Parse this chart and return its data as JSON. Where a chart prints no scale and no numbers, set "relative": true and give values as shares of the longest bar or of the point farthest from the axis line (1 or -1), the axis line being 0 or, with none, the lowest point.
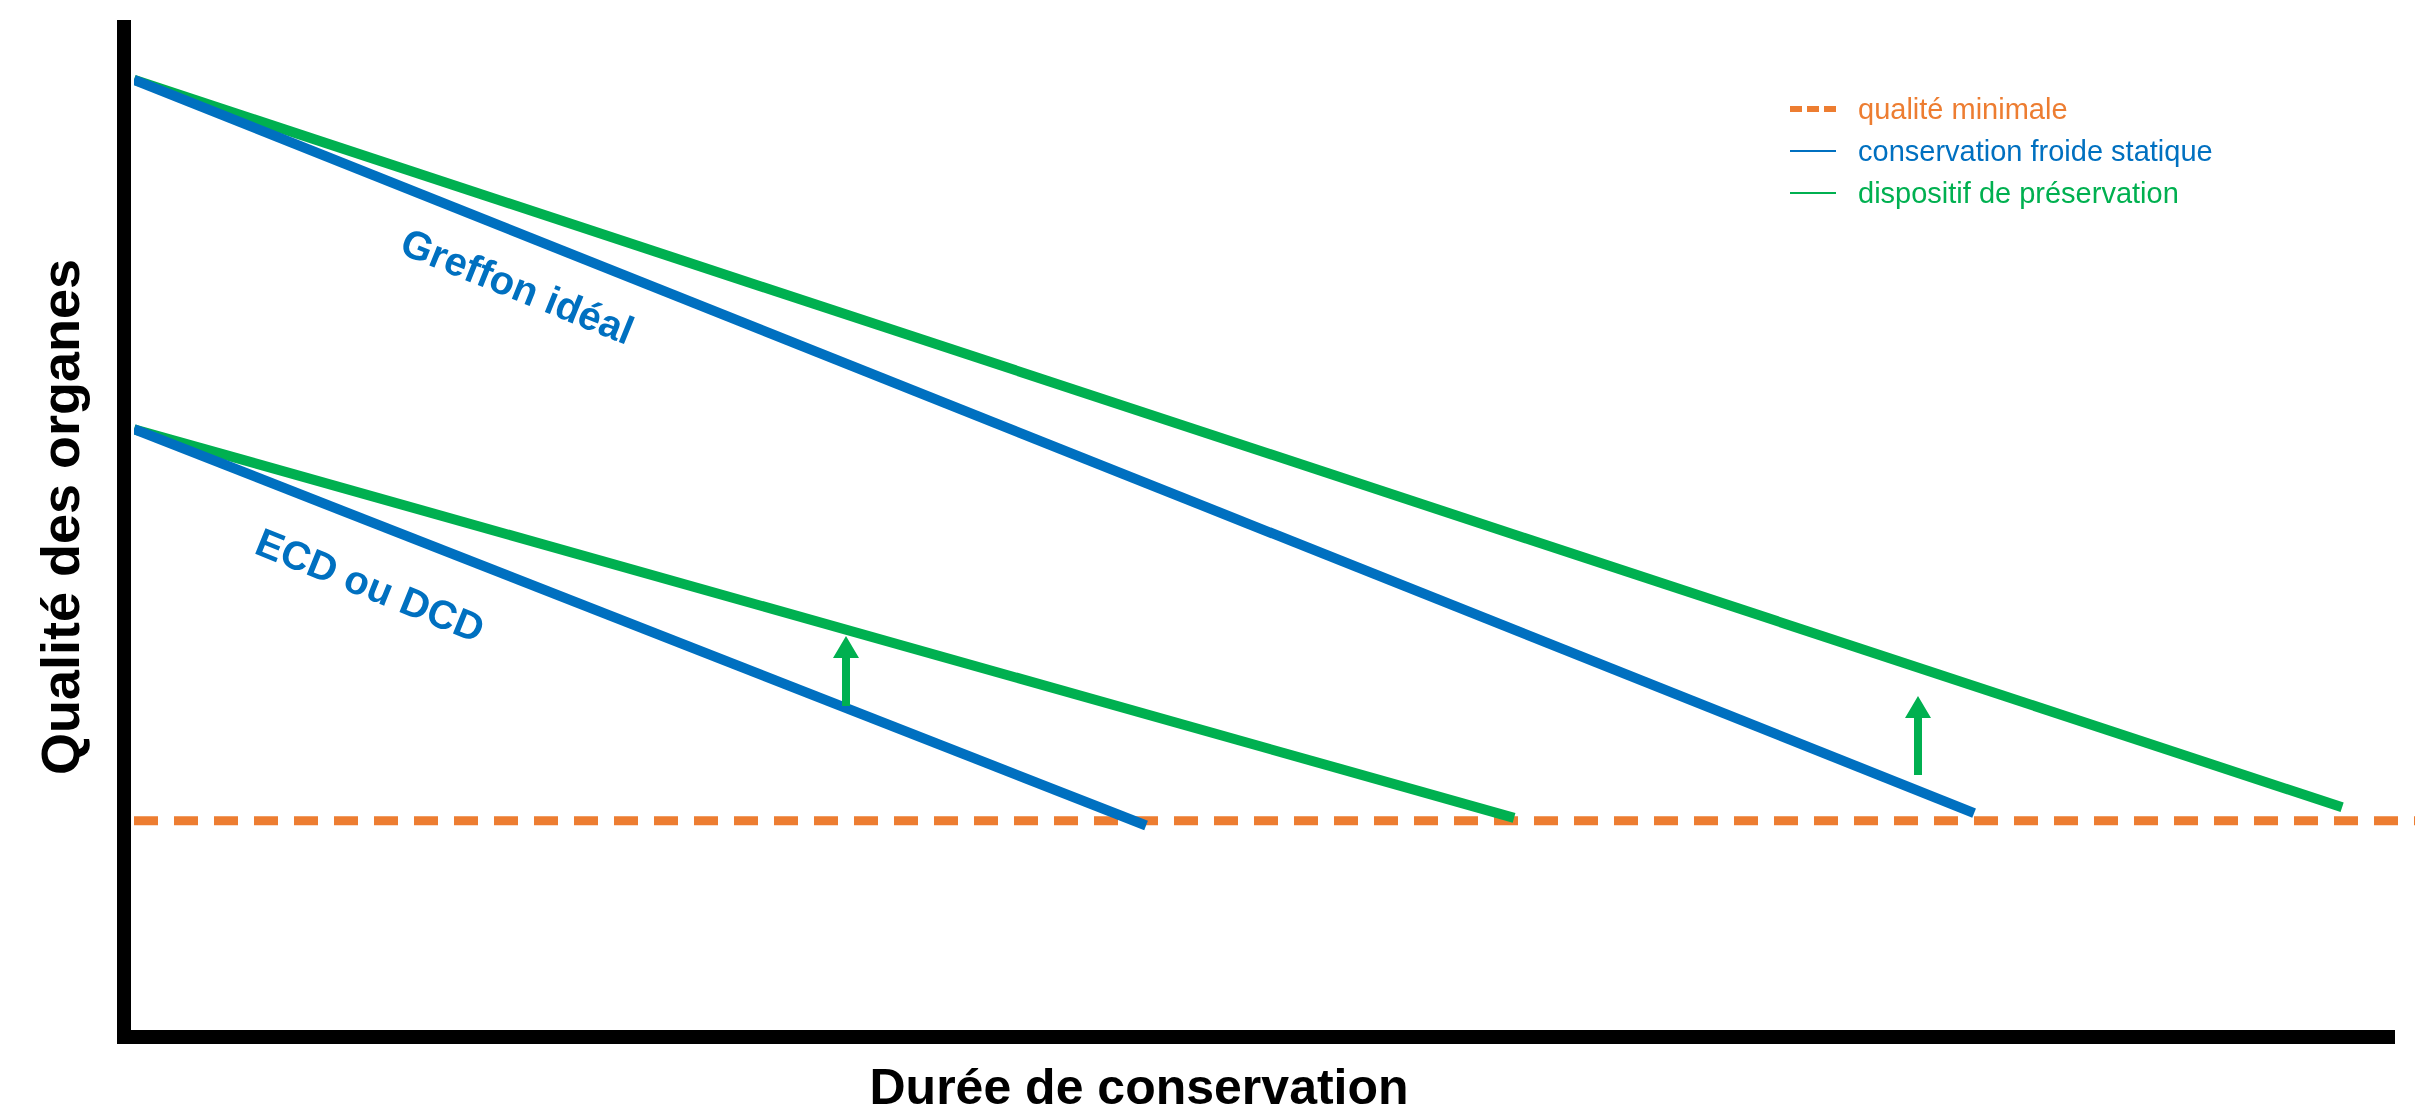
{
  "chart_data": {
    "type": "line",
    "relative": true,
    "xlabel": "Durée de conservation",
    "ylabel": "Qualité des organes",
    "legend": "top right",
    "categories": [
      null,
      null,
      null,
      null,
      null,
      null,
      null,
      null,
      null,
      null,
      null,
      null,
      null,
      null,
      null,
      null,
      null,
      null,
      null,
      null,
      null,
      null,
      null,
      null,
      null
    ],
    "series": [
      {
        "name": "conservation froide statique",
        "color": "#0070c0",
        "values": [
          1,
          null,
          null,
          null,
          null,
          null,
          null,
          null,
          null,
          null,
          null,
          null,
          null,
          null,
          null,
          null,
          null,
          null,
          null,
          null,
          0.234,
          null,
          null,
          null,
          null
        ]
      },
      {
        "name": "dispositif de préservation",
        "color": "#00b050",
        "values": [
          1,
          null,
          null,
          null,
          null,
          null,
          null,
          null,
          null,
          null,
          null,
          null,
          null,
          null,
          null,
          null,
          null,
          null,
          null,
          null,
          null,
          null,
          null,
          null,
          0.24
        ]
      },
      {
        "color": "#0070c0",
        "values": [
          0.635,
          null,
          null,
          null,
          null,
          null,
          null,
          null,
          null,
          null,
          null,
          0.221,
          null,
          null,
          null,
          null,
          null,
          null,
          null,
          null,
          null,
          null,
          null,
          null,
          null
        ]
      },
      {
        "color": "#00b050",
        "values": [
          0.635,
          null,
          null,
          null,
          null,
          null,
          null,
          null,
          null,
          null,
          null,
          null,
          null,
          null,
          null,
          0.229,
          null,
          null,
          null,
          null,
          null,
          null,
          null,
          null,
          null
        ]
      }
    ],
    "ref_lines": [
      {
        "axis": "y",
        "value": 0.226,
        "label": "qualité minimale",
        "color": "#ed7d31",
        "line_style": "dashed"
      }
    ],
    "annotations": [
      "Greffon idéal",
      "ECD ou DCD"
    ]
  }
}
